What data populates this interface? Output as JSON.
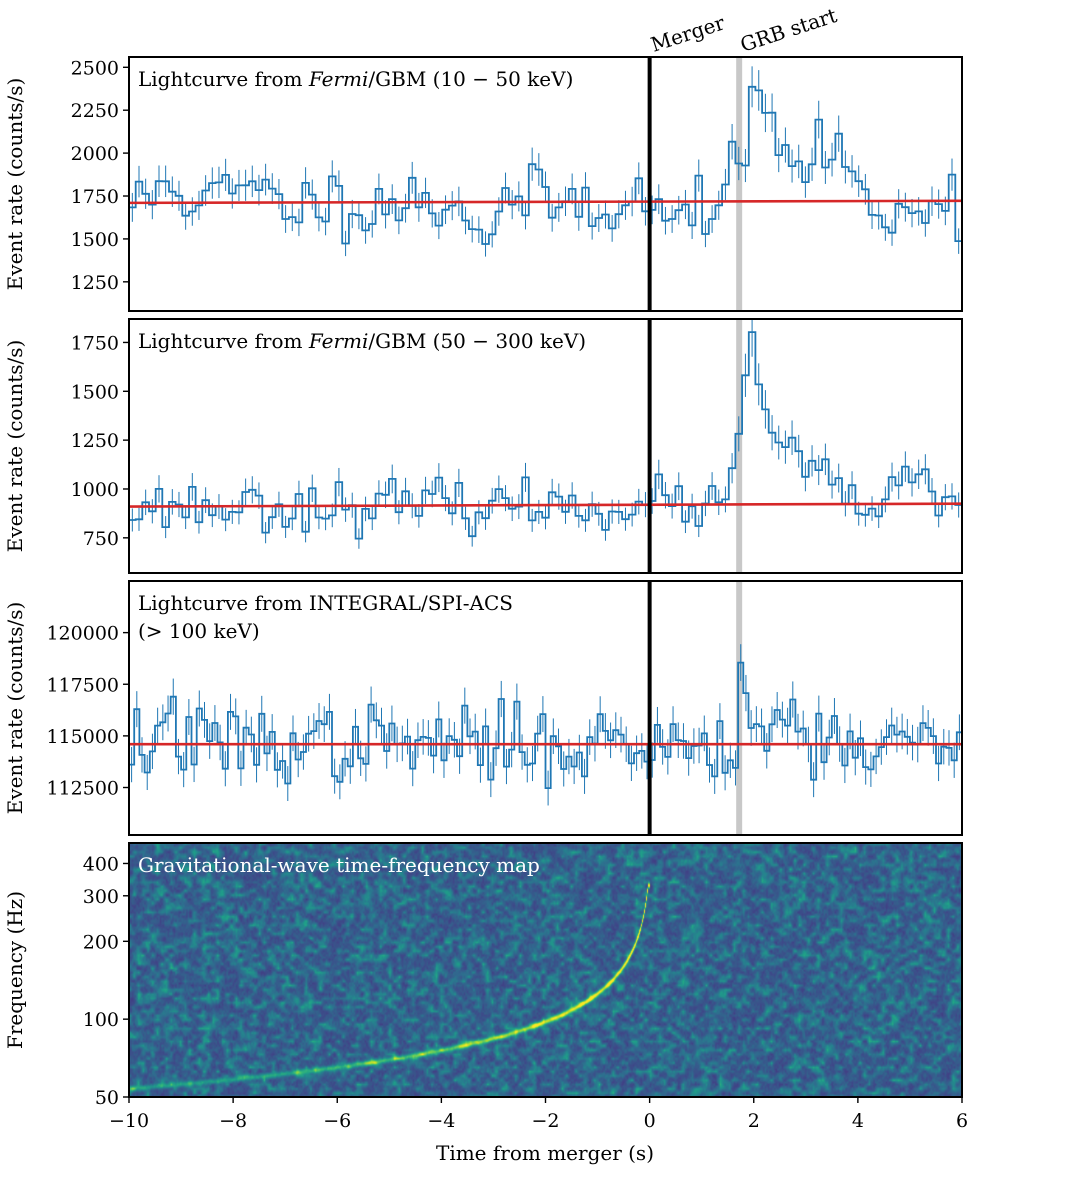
{
  "chart_data": [
    {
      "type": "line",
      "title_pre": "Lightcurve from ",
      "title_italic": "Fermi",
      "title_post": "/GBM (10 − 50 keV)",
      "ylabel": "Event rate (counts/s)",
      "ylim": [
        1080,
        2560
      ],
      "yticks": [
        1250,
        1500,
        1750,
        2000,
        2250,
        2500
      ],
      "ytick_labels": [
        "1250",
        "1500",
        "1750",
        "2000",
        "2250",
        "2500"
      ],
      "baseline": [
        1710,
        1722
      ],
      "bin_width": 0.128,
      "error_frac": 0.05,
      "features": [
        {
          "t": -9.2,
          "amp": 150,
          "w": 0.2
        },
        {
          "t": -7.8,
          "amp": 80,
          "w": 0.3
        },
        {
          "t": -3.2,
          "amp": -200,
          "w": 0.15
        },
        {
          "t": 1.75,
          "amp": 120,
          "w": 0.2
        },
        {
          "t": 2.1,
          "amp": 480,
          "w": 0.22
        },
        {
          "t": 2.7,
          "amp": 250,
          "w": 0.4
        },
        {
          "t": 3.6,
          "amp": 320,
          "w": 0.25
        },
        {
          "t": 4.4,
          "amp": -150,
          "w": 0.2
        },
        {
          "t": 0.4,
          "amp": -180,
          "w": 0.15
        }
      ],
      "noise": 95,
      "seed": 11
    },
    {
      "type": "line",
      "title_pre": "Lightcurve from ",
      "title_italic": "Fermi",
      "title_post": "/GBM (50 − 300 keV)",
      "ylabel": "Event rate (counts/s)",
      "ylim": [
        570,
        1870
      ],
      "yticks": [
        750,
        1000,
        1250,
        1500,
        1750
      ],
      "ytick_labels": [
        "750",
        "1000",
        "1250",
        "1500",
        "1750"
      ],
      "baseline": [
        910,
        925
      ],
      "bin_width": 0.128,
      "error_frac": 0.07,
      "features": [
        {
          "t": 1.95,
          "amp": 720,
          "w": 0.16
        },
        {
          "t": 2.4,
          "amp": 300,
          "w": 0.35
        },
        {
          "t": 3.1,
          "amp": 120,
          "w": 0.4
        },
        {
          "t": 5.0,
          "amp": 100,
          "w": 0.3
        }
      ],
      "noise": 62,
      "seed": 23
    },
    {
      "type": "line",
      "title_line1": "Lightcurve from INTEGRAL/SPI-ACS",
      "title_line2": "(> 100 keV)",
      "ylabel": "Event rate (counts/s)",
      "ylim": [
        110200,
        122500
      ],
      "yticks": [
        112500,
        115000,
        117500,
        120000
      ],
      "ytick_labels": [
        "112500",
        "115000",
        "117500",
        "120000"
      ],
      "baseline": [
        114600,
        114600
      ],
      "bin_width": 0.1,
      "error_frac": 0.0075,
      "features": [
        {
          "t": 1.8,
          "amp": 5500,
          "w": 0.06
        },
        {
          "t": 2.6,
          "amp": 1400,
          "w": 0.3
        },
        {
          "t": -9.2,
          "amp": 1600,
          "w": 0.1
        }
      ],
      "noise": 900,
      "seed": 37
    },
    {
      "type": "heatmap",
      "title": "Gravitational-wave time-frequency map",
      "ylabel": "Frequency (Hz)",
      "xlabel": "Time from merger (s)",
      "xlim": [
        -10,
        6
      ],
      "xticks": [
        -10,
        -8,
        -6,
        -4,
        -2,
        0,
        2,
        4,
        6
      ],
      "xtick_labels": [
        "−10",
        "−8",
        "−6",
        "−4",
        "−2",
        "0",
        "2",
        "4",
        "6"
      ],
      "yscale": "log",
      "ylim": [
        50,
        480
      ],
      "yticks": [
        50,
        100,
        200,
        300,
        400
      ],
      "ytick_labels": [
        "50",
        "100",
        "200",
        "300",
        "400"
      ],
      "chirp": {
        "t_merger": 0.0,
        "f_start": 54,
        "t_start": -10,
        "f_end": 330
      },
      "colormap": "viridis",
      "seed": 71
    }
  ],
  "annotations": {
    "merger_label": "Merger",
    "merger_time": 0.0,
    "grb_label": "GRB start",
    "grb_time": 1.72
  },
  "colors": {
    "lightcurve": "#1f77b4",
    "fit": "#d62728",
    "merger_line": "#000000",
    "grb_band": "#c8c8c8"
  }
}
